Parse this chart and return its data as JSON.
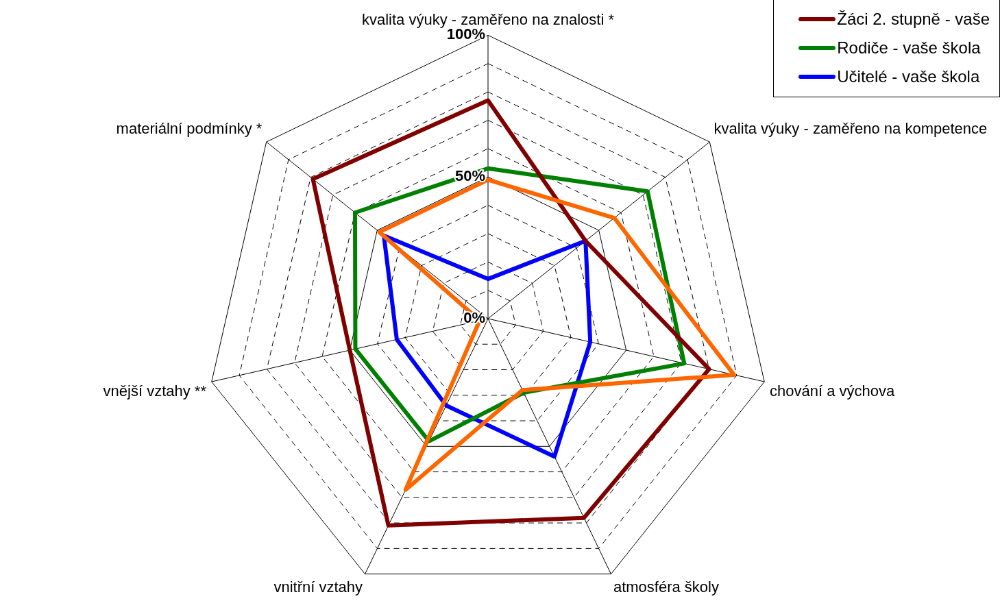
{
  "chart_data": {
    "type": "radar",
    "categories": [
      "kvalita výuky - zaměřeno na znalosti *",
      "kvalita výuky - zaměřeno na kompetence",
      "chování a výchova",
      "atmosféra školy",
      "vnitřní vztahy",
      "vnější vztahy **",
      "materiální podmínky *"
    ],
    "series": [
      {
        "color": "#ff6600",
        "values": [
          49,
          57,
          89,
          28,
          67,
          3,
          49
        ]
      },
      {
        "name": "Žáci 2. stupně - vaše",
        "color": "#800000",
        "values": [
          77,
          44,
          80,
          78,
          81,
          50,
          79
        ]
      },
      {
        "name": "Rodiče - vaše škola",
        "color": "#008000",
        "values": [
          53,
          72,
          71,
          29,
          48,
          48,
          60
        ]
      },
      {
        "name": "Učitelé - vaše škola",
        "color": "#0000ff",
        "values": [
          14,
          44,
          37,
          54,
          34,
          33,
          47
        ]
      }
    ],
    "ylim": [
      0,
      100
    ],
    "yticks": [
      {
        "value": 0,
        "label": "0%"
      },
      {
        "value": 50,
        "label": "50%"
      },
      {
        "value": 100,
        "label": "100%"
      }
    ],
    "grid": true,
    "legend": "top right",
    "marker": "none",
    "line_style": "solid"
  }
}
